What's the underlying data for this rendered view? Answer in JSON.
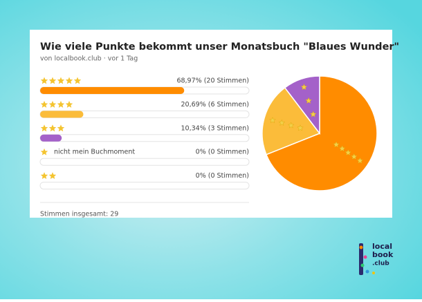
{
  "header": {
    "title": "Wie viele Punkte bekommt unser Monatsbuch \"Blaues Wunder\"",
    "subtitle": "von localbook.club · vor 1 Tag"
  },
  "options": [
    {
      "stars": 5,
      "percent": 68.97,
      "result": "68,97% (20 Stimmen)",
      "color": "#ff8c00"
    },
    {
      "stars": 4,
      "percent": 20.69,
      "result": "20,69% (6 Stimmen)",
      "color": "#fbbc3a"
    },
    {
      "stars": 3,
      "percent": 10.34,
      "result": "10,34% (3 Stimmen)",
      "color": "#a461c9"
    },
    {
      "stars": 1,
      "text": "nicht mein Buchmoment",
      "percent": 0,
      "result": "0% (0 Stimmen)",
      "color": "#6fa8dc"
    },
    {
      "stars": 2,
      "percent": 0,
      "result": "0% (0 Stimmen)",
      "color": "#e06666"
    }
  ],
  "footer": "Stimmen insgesamt: 29",
  "logo": [
    "local",
    "book",
    ".club"
  ]
}
